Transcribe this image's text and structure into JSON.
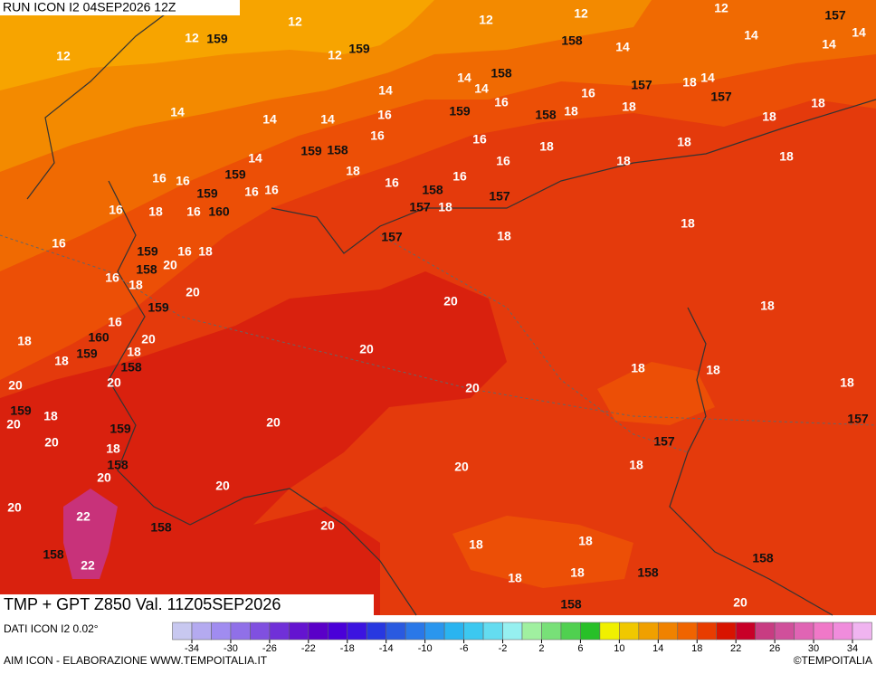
{
  "header": {
    "run": "RUN ICON I2 04SEP2026 12Z",
    "title": "TMP + GPT Z850 Val. 11Z05SEP2026",
    "source": "DATI ICON I2 0.02°",
    "footer": "AIM ICON - ELABORAZIONE WWW.TEMPOITALIA.IT",
    "copyright": "©TEMPOITALIA"
  },
  "map": {
    "temperature_labels": [
      12,
      12,
      12,
      12,
      12,
      12,
      12,
      14,
      14,
      14,
      14,
      14,
      14,
      14,
      14,
      14,
      14,
      14,
      14,
      16,
      16,
      16,
      16,
      16,
      16,
      16,
      16,
      16,
      16,
      16,
      16,
      16,
      16,
      16,
      16,
      16,
      16,
      18,
      18,
      18,
      18,
      18,
      18,
      18,
      18,
      18,
      18,
      18,
      18,
      18,
      18,
      18,
      18,
      18,
      18,
      18,
      18,
      18,
      18,
      18,
      18,
      18,
      18,
      18,
      18,
      18,
      18,
      20,
      20,
      20,
      20,
      20,
      20,
      20,
      20,
      20,
      20,
      20,
      20,
      20,
      20,
      20,
      20,
      20,
      22,
      22
    ],
    "geopotential_labels": [
      159,
      159,
      158,
      157,
      157,
      157,
      157,
      158,
      159,
      158,
      159,
      158,
      159,
      159,
      160,
      158,
      157,
      157,
      157,
      159,
      158,
      159,
      160,
      159,
      158,
      159,
      159,
      158,
      158,
      158,
      157,
      158,
      158,
      158
    ]
  },
  "colorbar": {
    "ticks": [
      -34,
      -30,
      -26,
      -22,
      -18,
      -14,
      -10,
      -6,
      -2,
      2,
      6,
      10,
      14,
      18,
      22,
      26,
      30,
      34
    ],
    "colors": [
      "#c8c8f0",
      "#b4aaf0",
      "#a08cf0",
      "#9070e8",
      "#8050e0",
      "#7030d8",
      "#6414d0",
      "#5a00c8",
      "#4a00d8",
      "#3c14e0",
      "#2838e0",
      "#2a5ae0",
      "#2a78e8",
      "#2a96ee",
      "#2ab4f0",
      "#3cc8f0",
      "#64dcf0",
      "#96f0f0",
      "#a0f0a0",
      "#78e078",
      "#50d050",
      "#28c028",
      "#f0f000",
      "#f0c800",
      "#f0a000",
      "#f08200",
      "#f06400",
      "#e83c00",
      "#d81400",
      "#c80028",
      "#c83c82",
      "#d0509b",
      "#e064b4",
      "#f078c8",
      "#f08cdc",
      "#f0b4f0"
    ]
  }
}
